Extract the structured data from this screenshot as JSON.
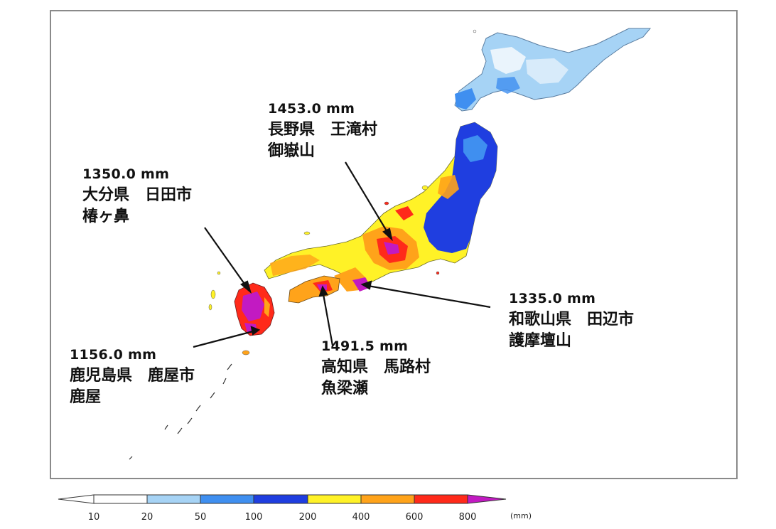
{
  "annotations": [
    {
      "id": "oita",
      "amount": "1350.0 mm",
      "line1": "大分県　日田市",
      "line2": "椿ヶ鼻"
    },
    {
      "id": "nagano",
      "amount": "1453.0 mm",
      "line1": "長野県　王滝村",
      "line2": "御嶽山"
    },
    {
      "id": "kochi",
      "amount": "1491.5 mm",
      "line1": "高知県　馬路村",
      "line2": "魚梁瀬"
    },
    {
      "id": "wakayama",
      "amount": "1335.0 mm",
      "line1": "和歌山県　田辺市",
      "line2": "護摩壇山"
    },
    {
      "id": "kagoshima",
      "amount": "1156.0 mm",
      "line1": "鹿児島県　鹿屋市",
      "line2": "鹿屋"
    }
  ],
  "legend": {
    "ticks": [
      "10",
      "20",
      "50",
      "100",
      "200",
      "400",
      "600",
      "800"
    ],
    "unit": "(mm)",
    "colors": [
      "#ffffff",
      "#a6d3f5",
      "#3f8ff0",
      "#1f3ee0",
      "#fff227",
      "#ffa31a",
      "#ff2a1a",
      "#c21ac2"
    ]
  }
}
